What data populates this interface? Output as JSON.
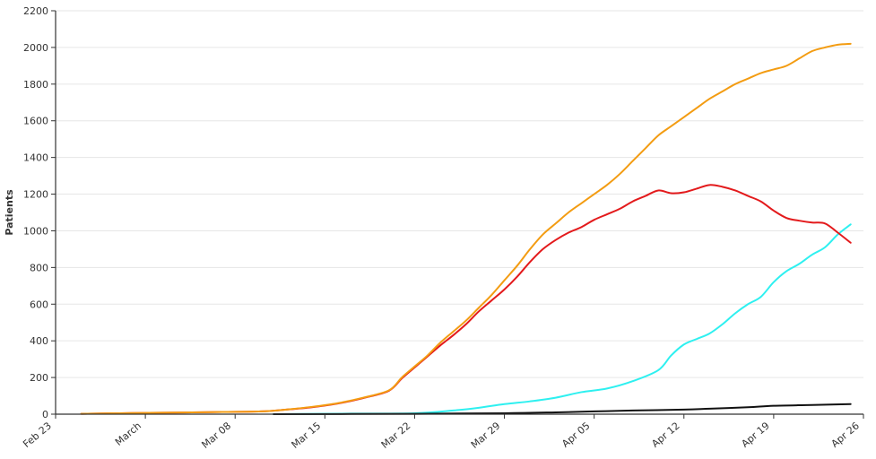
{
  "chart_data": {
    "type": "line",
    "title": "",
    "xlabel": "",
    "ylabel": "Patients",
    "xlim": [
      "2020-02-23",
      "2020-04-26"
    ],
    "ylim": [
      0,
      2200
    ],
    "yticks": [
      0,
      200,
      400,
      600,
      800,
      1000,
      1200,
      1400,
      1600,
      1800,
      2000,
      2200
    ],
    "xticks": [
      {
        "date": "2020-02-23",
        "label": "Feb 23"
      },
      {
        "date": "2020-03-01",
        "label": "March"
      },
      {
        "date": "2020-03-08",
        "label": "Mar 08"
      },
      {
        "date": "2020-03-15",
        "label": "Mar 15"
      },
      {
        "date": "2020-03-22",
        "label": "Mar 22"
      },
      {
        "date": "2020-03-29",
        "label": "Mar 29"
      },
      {
        "date": "2020-04-05",
        "label": "Apr 05"
      },
      {
        "date": "2020-04-12",
        "label": "Apr 12"
      },
      {
        "date": "2020-04-19",
        "label": "Apr 19"
      },
      {
        "date": "2020-04-26",
        "label": "Apr 26"
      }
    ],
    "grid": true,
    "legend": "none",
    "series": [
      {
        "color": "#f39c12",
        "points": [
          [
            "2020-02-25",
            2
          ],
          [
            "2020-02-27",
            4
          ],
          [
            "2020-03-01",
            7
          ],
          [
            "2020-03-04",
            9
          ],
          [
            "2020-03-07",
            12
          ],
          [
            "2020-03-10",
            15
          ],
          [
            "2020-03-12",
            25
          ],
          [
            "2020-03-14",
            40
          ],
          [
            "2020-03-16",
            60
          ],
          [
            "2020-03-18",
            90
          ],
          [
            "2020-03-20",
            130
          ],
          [
            "2020-03-21",
            200
          ],
          [
            "2020-03-22",
            260
          ],
          [
            "2020-03-23",
            320
          ],
          [
            "2020-03-24",
            390
          ],
          [
            "2020-03-25",
            450
          ],
          [
            "2020-03-26",
            510
          ],
          [
            "2020-03-27",
            580
          ],
          [
            "2020-03-28",
            650
          ],
          [
            "2020-03-29",
            730
          ],
          [
            "2020-03-30",
            810
          ],
          [
            "2020-03-31",
            900
          ],
          [
            "2020-04-01",
            980
          ],
          [
            "2020-04-02",
            1040
          ],
          [
            "2020-04-03",
            1100
          ],
          [
            "2020-04-04",
            1150
          ],
          [
            "2020-04-05",
            1200
          ],
          [
            "2020-04-06",
            1250
          ],
          [
            "2020-04-07",
            1310
          ],
          [
            "2020-04-08",
            1380
          ],
          [
            "2020-04-09",
            1450
          ],
          [
            "2020-04-10",
            1520
          ],
          [
            "2020-04-11",
            1570
          ],
          [
            "2020-04-12",
            1620
          ],
          [
            "2020-04-13",
            1670
          ],
          [
            "2020-04-14",
            1720
          ],
          [
            "2020-04-15",
            1760
          ],
          [
            "2020-04-16",
            1800
          ],
          [
            "2020-04-17",
            1830
          ],
          [
            "2020-04-18",
            1860
          ],
          [
            "2020-04-19",
            1880
          ],
          [
            "2020-04-20",
            1900
          ],
          [
            "2020-04-21",
            1940
          ],
          [
            "2020-04-22",
            1980
          ],
          [
            "2020-04-23",
            2000
          ],
          [
            "2020-04-24",
            2015
          ],
          [
            "2020-04-25",
            2020
          ]
        ]
      },
      {
        "color": "#e31a1c",
        "points": [
          [
            "2020-02-25",
            2
          ],
          [
            "2020-02-27",
            4
          ],
          [
            "2020-03-01",
            7
          ],
          [
            "2020-03-04",
            9
          ],
          [
            "2020-03-07",
            12
          ],
          [
            "2020-03-10",
            15
          ],
          [
            "2020-03-12",
            25
          ],
          [
            "2020-03-14",
            38
          ],
          [
            "2020-03-16",
            58
          ],
          [
            "2020-03-18",
            88
          ],
          [
            "2020-03-20",
            128
          ],
          [
            "2020-03-21",
            195
          ],
          [
            "2020-03-22",
            255
          ],
          [
            "2020-03-23",
            315
          ],
          [
            "2020-03-24",
            375
          ],
          [
            "2020-03-25",
            430
          ],
          [
            "2020-03-26",
            490
          ],
          [
            "2020-03-27",
            560
          ],
          [
            "2020-03-28",
            620
          ],
          [
            "2020-03-29",
            680
          ],
          [
            "2020-03-30",
            750
          ],
          [
            "2020-03-31",
            830
          ],
          [
            "2020-04-01",
            900
          ],
          [
            "2020-04-02",
            950
          ],
          [
            "2020-04-03",
            990
          ],
          [
            "2020-04-04",
            1020
          ],
          [
            "2020-04-05",
            1060
          ],
          [
            "2020-04-06",
            1090
          ],
          [
            "2020-04-07",
            1120
          ],
          [
            "2020-04-08",
            1160
          ],
          [
            "2020-04-09",
            1190
          ],
          [
            "2020-04-10",
            1220
          ],
          [
            "2020-04-11",
            1205
          ],
          [
            "2020-04-12",
            1210
          ],
          [
            "2020-04-13",
            1230
          ],
          [
            "2020-04-14",
            1250
          ],
          [
            "2020-04-15",
            1240
          ],
          [
            "2020-04-16",
            1220
          ],
          [
            "2020-04-17",
            1190
          ],
          [
            "2020-04-18",
            1160
          ],
          [
            "2020-04-19",
            1110
          ],
          [
            "2020-04-20",
            1070
          ],
          [
            "2020-04-21",
            1055
          ],
          [
            "2020-04-22",
            1045
          ],
          [
            "2020-04-23",
            1040
          ],
          [
            "2020-04-24",
            990
          ],
          [
            "2020-04-25",
            935
          ]
        ]
      },
      {
        "color": "#2ef0f0",
        "points": [
          [
            "2020-03-11",
            0
          ],
          [
            "2020-03-17",
            3
          ],
          [
            "2020-03-22",
            5
          ],
          [
            "2020-03-25",
            20
          ],
          [
            "2020-03-27",
            35
          ],
          [
            "2020-03-29",
            55
          ],
          [
            "2020-03-31",
            70
          ],
          [
            "2020-04-02",
            90
          ],
          [
            "2020-04-04",
            120
          ],
          [
            "2020-04-06",
            140
          ],
          [
            "2020-04-08",
            180
          ],
          [
            "2020-04-10",
            240
          ],
          [
            "2020-04-11",
            320
          ],
          [
            "2020-04-12",
            380
          ],
          [
            "2020-04-13",
            410
          ],
          [
            "2020-04-14",
            440
          ],
          [
            "2020-04-15",
            490
          ],
          [
            "2020-04-16",
            550
          ],
          [
            "2020-04-17",
            600
          ],
          [
            "2020-04-18",
            640
          ],
          [
            "2020-04-19",
            720
          ],
          [
            "2020-04-20",
            780
          ],
          [
            "2020-04-21",
            820
          ],
          [
            "2020-04-22",
            870
          ],
          [
            "2020-04-23",
            910
          ],
          [
            "2020-04-24",
            980
          ],
          [
            "2020-04-25",
            1035
          ]
        ]
      },
      {
        "color": "#111111",
        "points": [
          [
            "2020-03-11",
            0
          ],
          [
            "2020-03-22",
            2
          ],
          [
            "2020-03-29",
            5
          ],
          [
            "2020-04-02",
            10
          ],
          [
            "2020-04-05",
            15
          ],
          [
            "2020-04-08",
            20
          ],
          [
            "2020-04-12",
            25
          ],
          [
            "2020-04-14",
            30
          ],
          [
            "2020-04-17",
            38
          ],
          [
            "2020-04-19",
            46
          ],
          [
            "2020-04-22",
            50
          ],
          [
            "2020-04-25",
            55
          ]
        ]
      }
    ]
  }
}
